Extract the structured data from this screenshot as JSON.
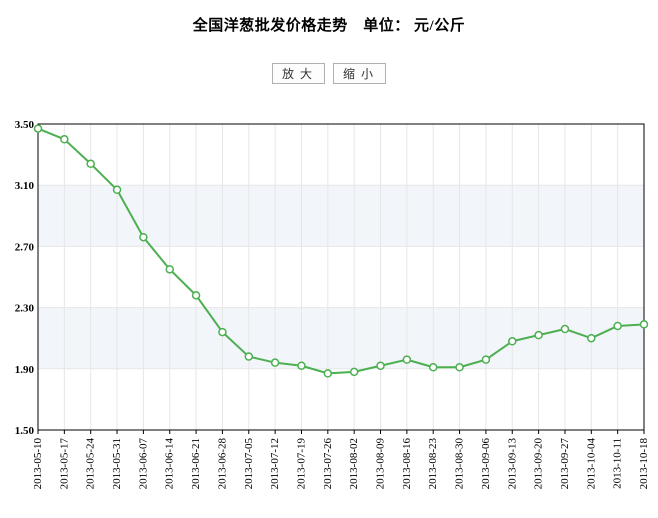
{
  "title": "全国洋葱批发价格走势　单位： 元/公斤",
  "buttons": {
    "zoom_in": "放大",
    "zoom_out": "缩小"
  },
  "chart": {
    "type": "line",
    "background_color": "#ffffff",
    "band_color": "#f2f6fb",
    "grid_color": "#e6e6e6",
    "axis_color": "#000000",
    "line_color": "#4caf50",
    "line_width": 2,
    "marker_fill": "#ffffff",
    "marker_stroke": "#4caf50",
    "marker_radius": 3.5,
    "ylim": [
      1.5,
      3.5
    ],
    "ytick_step": 0.4,
    "yticks": [
      "1.50",
      "1.90",
      "2.30",
      "2.70",
      "3.10",
      "3.50"
    ],
    "title_fontsize": 15,
    "tick_fontsize": 11,
    "categories": [
      "2013-05-10",
      "2013-05-17",
      "2013-05-24",
      "2013-05-31",
      "2013-06-07",
      "2013-06-14",
      "2013-06-21",
      "2013-06-28",
      "2013-07-05",
      "2013-07-12",
      "2013-07-19",
      "2013-07-26",
      "2013-08-02",
      "2013-08-09",
      "2013-08-16",
      "2013-08-23",
      "2013-08-30",
      "2013-09-06",
      "2013-09-13",
      "2013-09-20",
      "2013-09-27",
      "2013-10-04",
      "2013-10-11",
      "2013-10-18"
    ],
    "values": [
      3.47,
      3.4,
      3.24,
      3.07,
      2.76,
      2.55,
      2.38,
      2.14,
      1.98,
      1.94,
      1.92,
      1.87,
      1.88,
      1.92,
      1.96,
      1.91,
      1.91,
      1.96,
      2.08,
      2.12,
      2.16,
      2.1,
      2.18,
      2.19
    ]
  }
}
